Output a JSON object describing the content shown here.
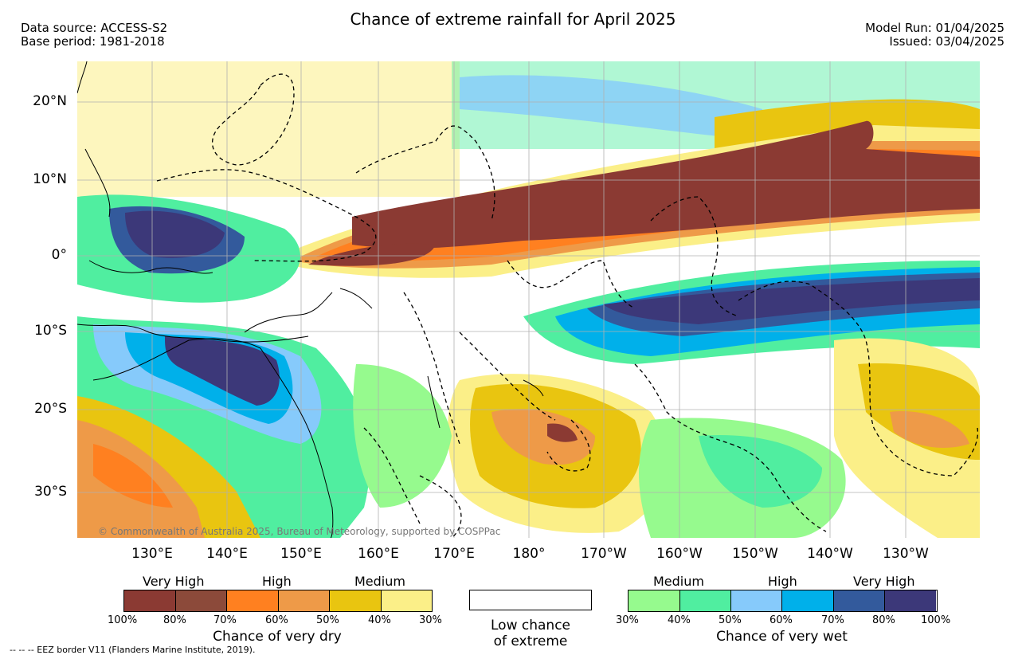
{
  "header": {
    "title": "Chance of extreme rainfall for April 2025",
    "data_source": "Data source: ACCESS-S2",
    "base_period": "Base period: 1981-2018",
    "model_run": "Model Run: 01/04/2025",
    "issued": "Issued: 03/04/2025"
  },
  "map": {
    "credit": "© Commonwealth of Australia 2025, Bureau of Meteorology, supported by COSPPac",
    "lat_labels": [
      "20°N",
      "10°N",
      "0°",
      "10°S",
      "20°S",
      "30°S"
    ],
    "lon_labels": [
      "130°E",
      "140°E",
      "150°E",
      "160°E",
      "170°E",
      "180°",
      "170°W",
      "160°W",
      "150°W",
      "140°W",
      "130°W"
    ]
  },
  "legend": {
    "dry": {
      "headers": [
        "Very High",
        "High",
        "Medium"
      ],
      "colors": [
        "#8b3a33",
        "#8c4a3a",
        "#ff8020",
        "#ee9a48",
        "#e9c510",
        "#fbef88"
      ],
      "ticks": [
        "100%",
        "80%",
        "70%",
        "60%",
        "50%",
        "40%",
        "30%"
      ],
      "caption": "Chance of very dry"
    },
    "low": {
      "color": "#ffffff",
      "caption_line1": "Low chance",
      "caption_line2": "of extreme"
    },
    "wet": {
      "headers": [
        "Medium",
        "High",
        "Very High"
      ],
      "colors": [
        "#96fa8e",
        "#50eea0",
        "#86cafb",
        "#00b0ea",
        "#335a9c",
        "#3c3879"
      ],
      "ticks": [
        "30%",
        "40%",
        "50%",
        "60%",
        "70%",
        "80%",
        "100%"
      ],
      "caption": "Chance of very wet"
    }
  },
  "footer": "--  --  -- EEZ border V11 (Flanders Marine Institute, 2019)."
}
